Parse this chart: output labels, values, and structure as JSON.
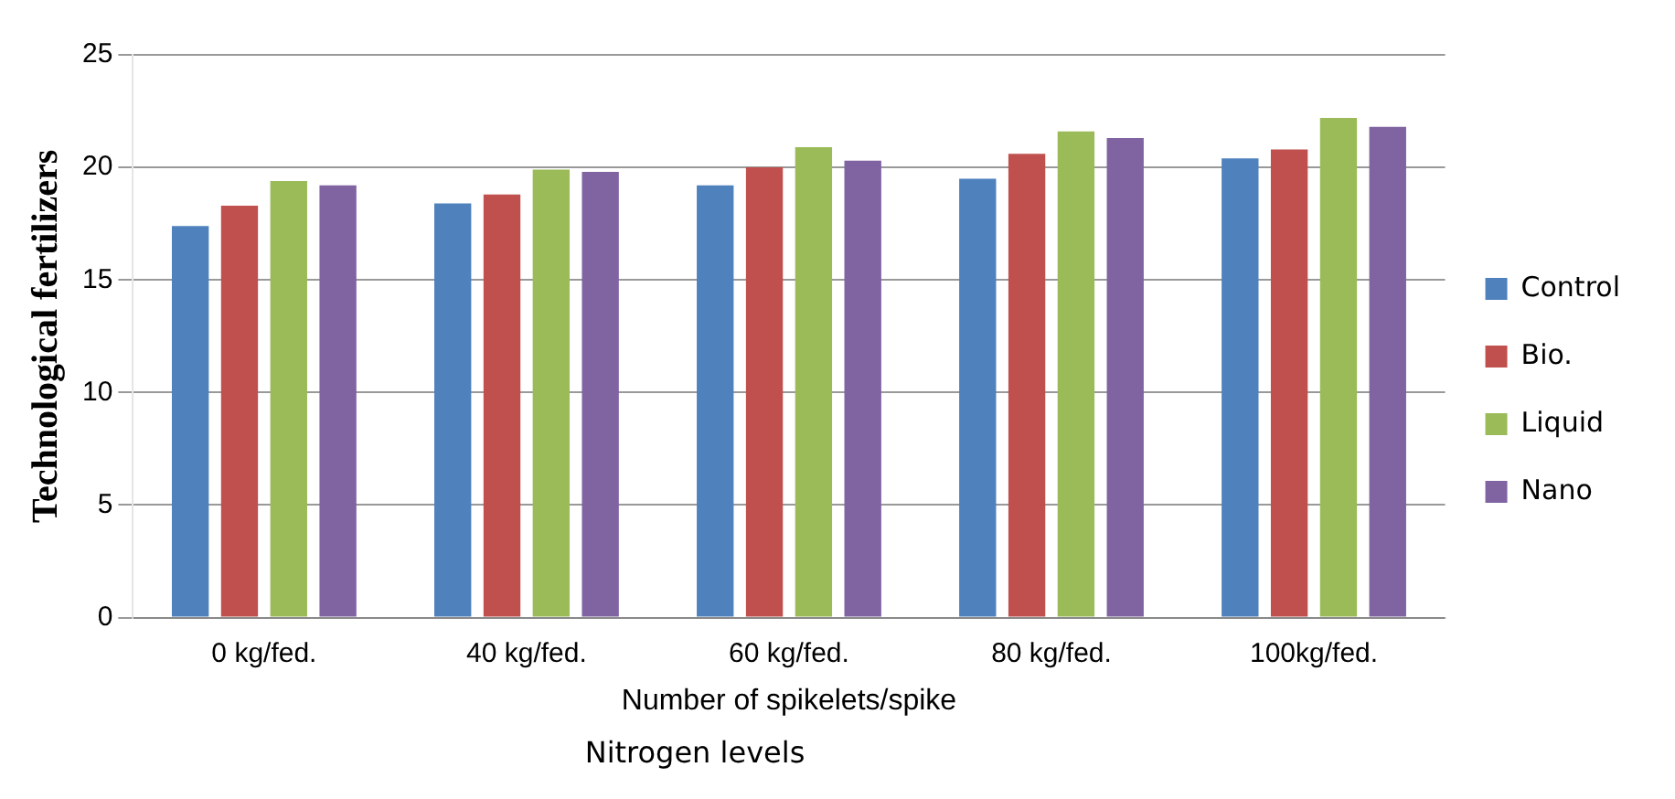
{
  "chart_data": {
    "type": "bar",
    "ylabel": "Technological fertilizers",
    "xlabel": "Number of spikelets/spike",
    "annotations": [
      "Nitrogen levels"
    ],
    "categories": [
      "0 kg/fed.",
      "40 kg/fed.",
      "60 kg/fed.",
      "80 kg/fed.",
      "100kg/fed."
    ],
    "series": [
      {
        "name": "Control",
        "color": "#4f81bd",
        "values": [
          17.4,
          18.4,
          19.2,
          19.5,
          20.4
        ]
      },
      {
        "name": "Bio.",
        "color": "#c0504d",
        "values": [
          18.3,
          18.8,
          20.0,
          20.6,
          20.8
        ]
      },
      {
        "name": "Liquid",
        "color": "#9bbb59",
        "values": [
          19.4,
          19.9,
          20.9,
          21.6,
          22.2
        ]
      },
      {
        "name": "Nano",
        "color": "#8064a2",
        "values": [
          19.2,
          19.8,
          20.3,
          21.3,
          21.8
        ]
      }
    ],
    "ylim": [
      0,
      25
    ],
    "yticks": [
      0,
      5,
      10,
      15,
      20,
      25
    ],
    "grid": "y",
    "legend": "right"
  }
}
